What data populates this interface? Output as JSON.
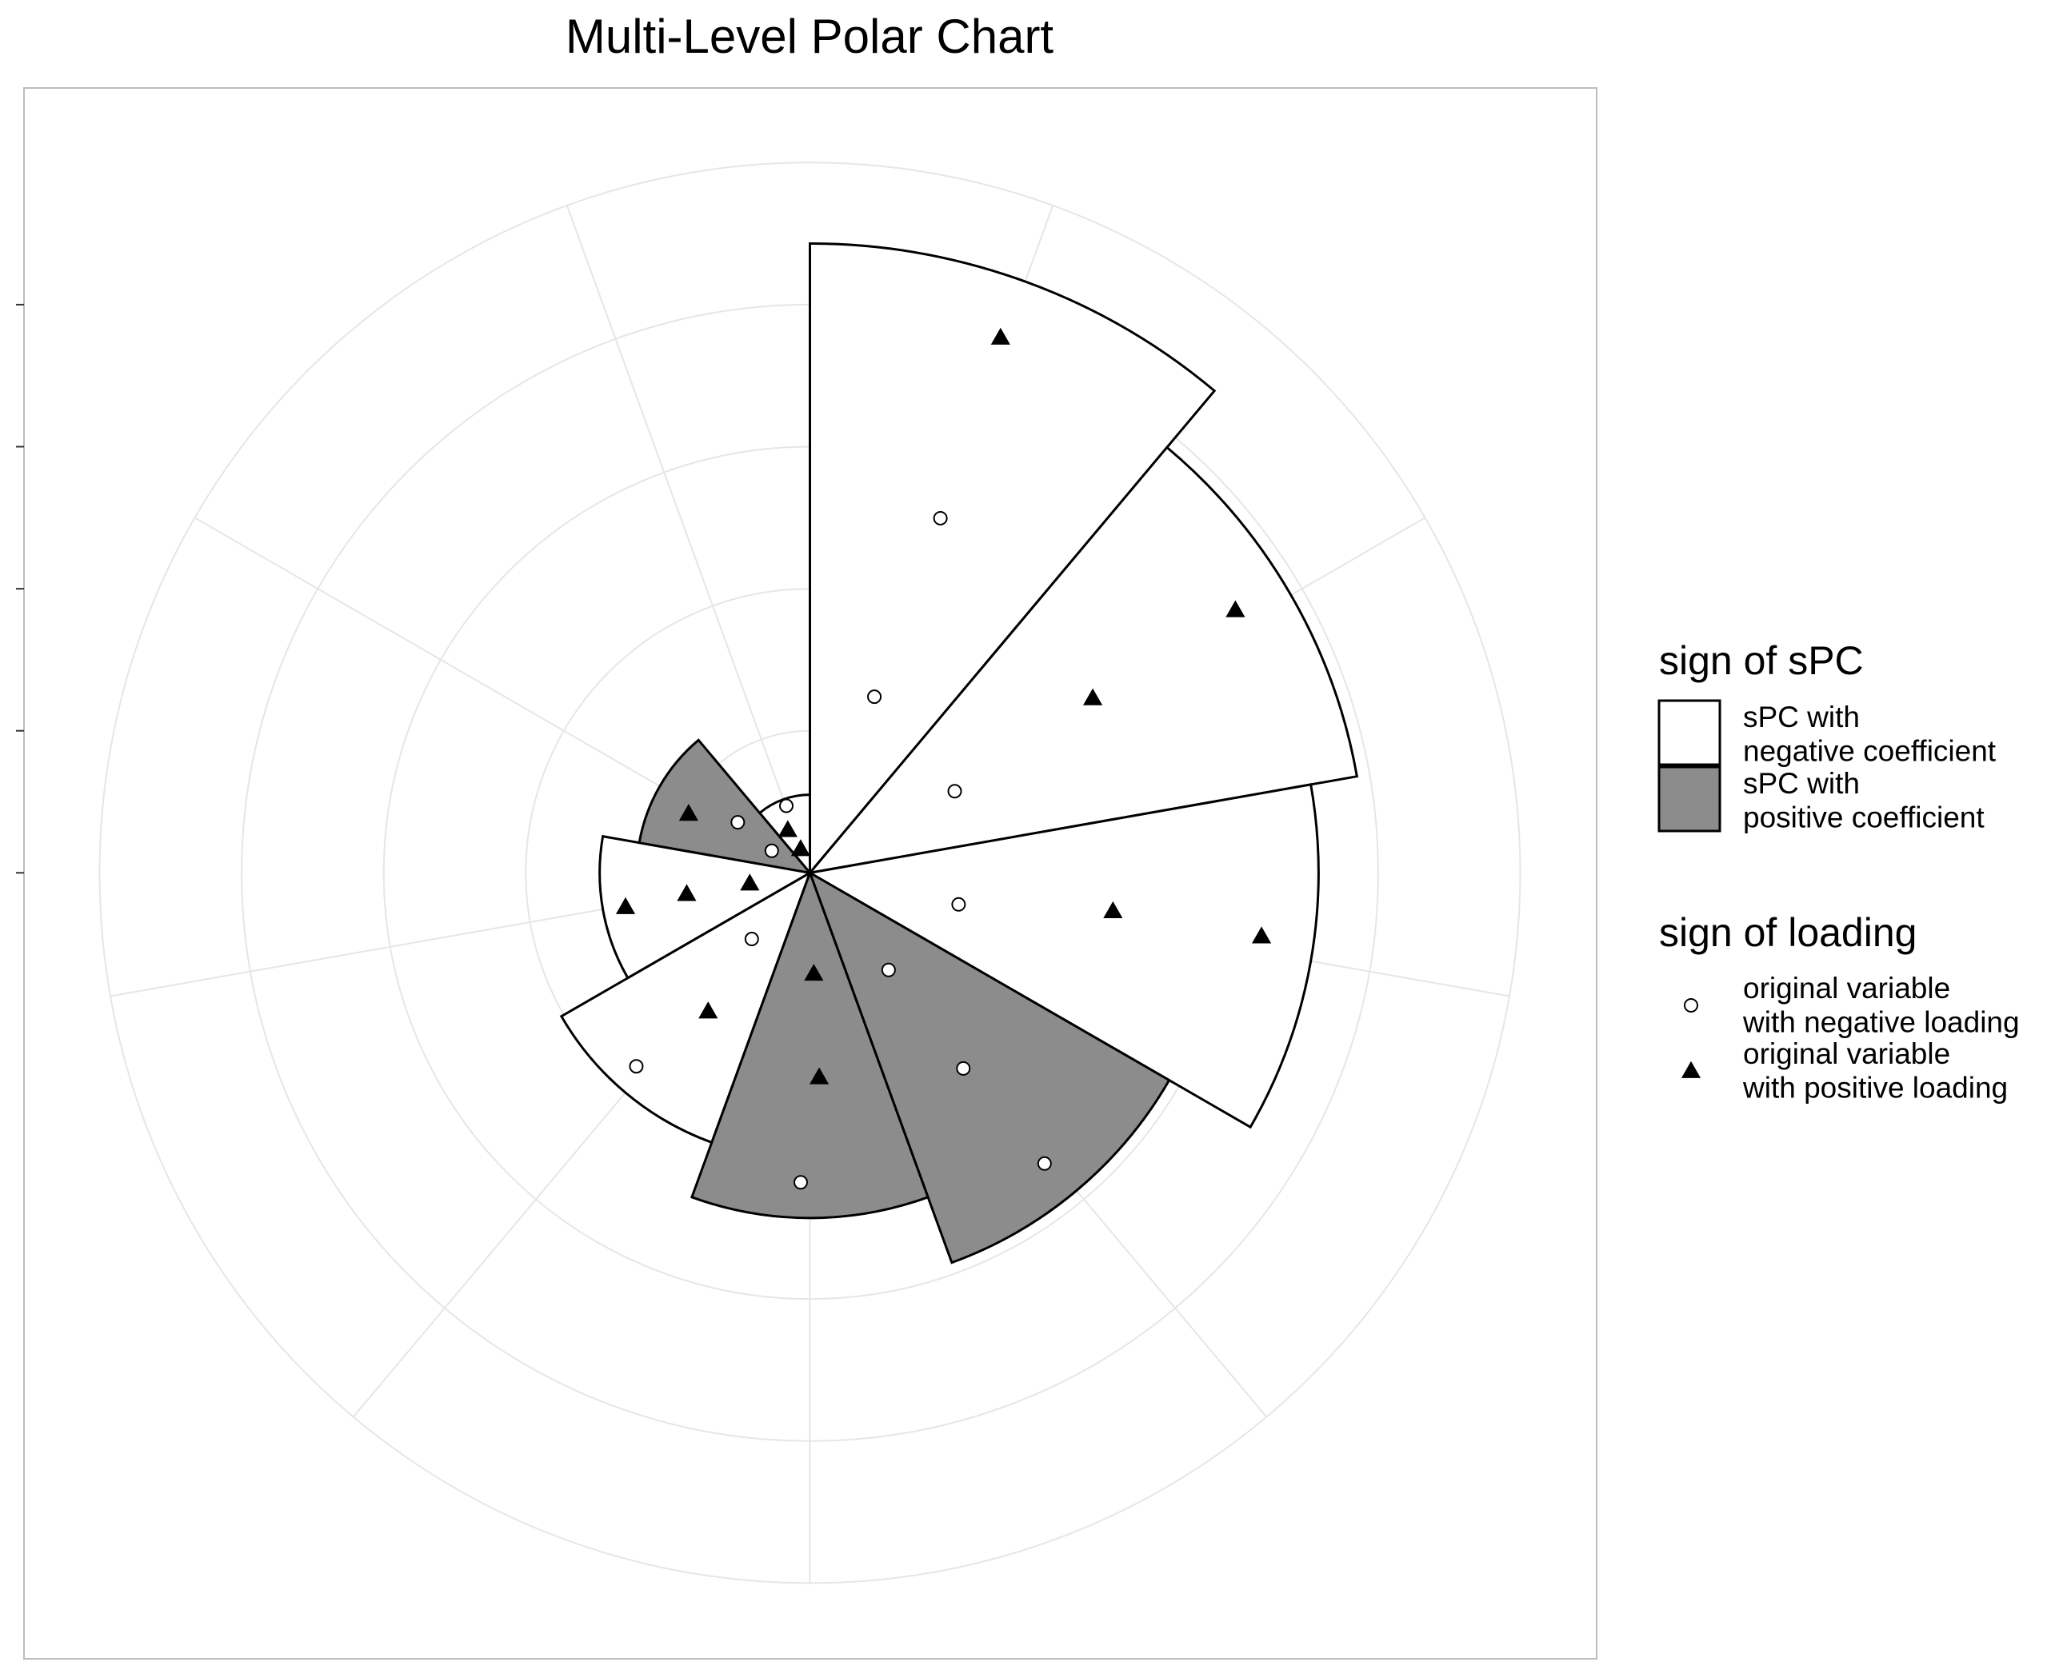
{
  "chart_data": {
    "type": "polar_bar",
    "title": "Multi-Level Polar Chart",
    "categories": [
      null,
      null,
      null,
      null,
      null,
      null,
      null,
      null,
      null
    ],
    "ylim": [
      0,
      5
    ],
    "yticks": [
      0,
      1,
      2,
      3,
      4
    ],
    "xlim": [
      0,
      360
    ],
    "grid": true,
    "bar_legend_title": "sign of sPC",
    "point_legend_title": "sign of loading",
    "series": [
      {
        "name": "sPC with\nnegative coefficient",
        "color": "#ffffff",
        "values": [
          4.43,
          3.91,
          3.58,
          null,
          null,
          2.02,
          1.48,
          null,
          0.55
        ]
      },
      {
        "name": "sPC with\npositive coefficient",
        "color": "#8c8c8c",
        "values": [
          null,
          null,
          null,
          2.92,
          2.43,
          null,
          null,
          1.22,
          null
        ]
      }
    ],
    "points": [
      {
        "name": "original variable\nwith negative loading",
        "shape": "circle",
        "color": "#ffffff",
        "x": [
          20.2,
          20.1,
          60.6,
          102,
          141.1,
          141.9,
          141,
          181.7,
          221.9,
          221.3,
          305,
          300,
          340.6
        ],
        "values": [
          2.66,
          1.32,
          1.17,
          1.07,
          2.63,
          1.75,
          0.88,
          2.18,
          1.83,
          0.62,
          0.62,
          0.31,
          0.5
        ]
      },
      {
        "name": "original variable\nwith positive loading",
        "shape": "triangle",
        "color": "#000000",
        "x": [
          19.6,
          58.3,
          58.3,
          98,
          97.2,
          177.4,
          177.8,
          216.3,
          259.5,
          260.3,
          260,
          296,
          332.7,
          338.7
        ],
        "values": [
          4.0,
          3.52,
          2.34,
          3.21,
          2.15,
          1.44,
          0.71,
          1.21,
          1.32,
          0.88,
          0.43,
          0.95,
          0.34,
          0.18
        ]
      }
    ]
  }
}
